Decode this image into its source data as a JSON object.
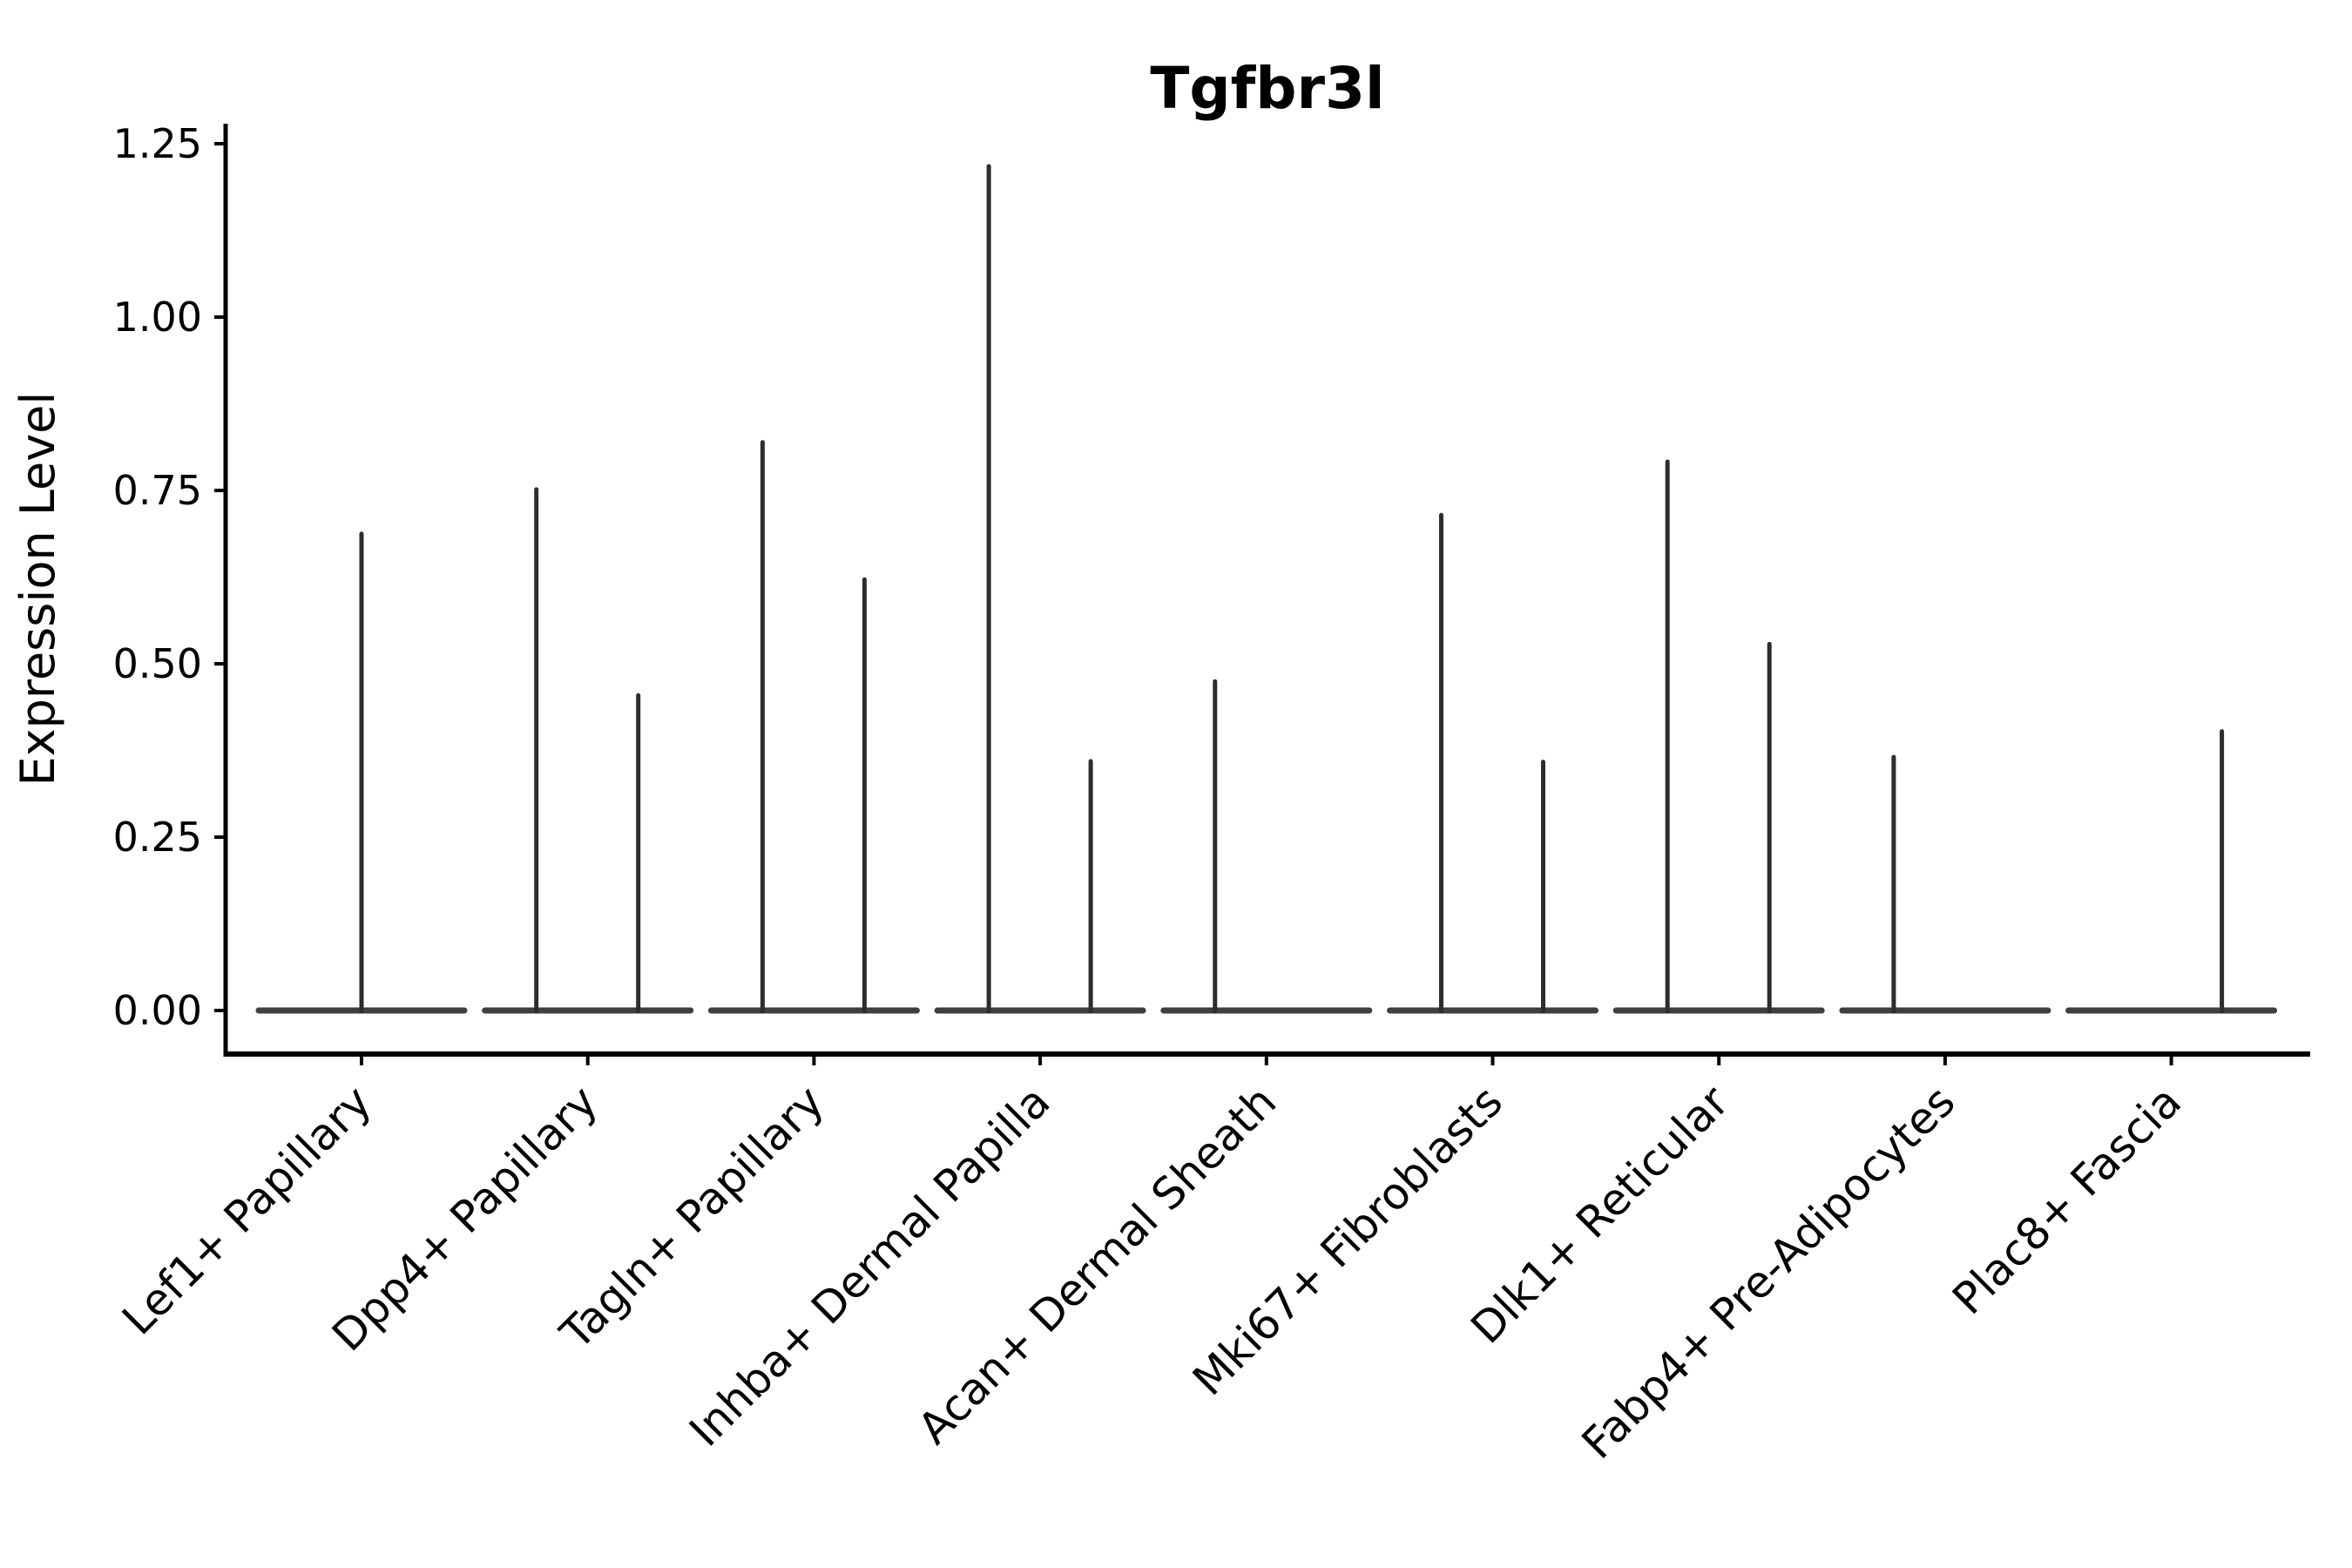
{
  "title": "Tgfbr3l",
  "ylabel": "Expression Level",
  "colors": {
    "background": "#ffffff",
    "axis": "#000000",
    "text": "#000000",
    "violin_spike": "#2d2d2d",
    "violin_baseline": "#3f3f3f"
  },
  "chart_data": {
    "type": "violin",
    "title": "Tgfbr3l",
    "xlabel": "",
    "ylabel": "Expression Level",
    "ylim": [
      0,
      1.25
    ],
    "y_ticks": [
      "0.00",
      "0.25",
      "0.50",
      "0.75",
      "1.00",
      "1.25"
    ],
    "y_tick_values": [
      0,
      0.25,
      0.5,
      0.75,
      1.0,
      1.25
    ],
    "grid": false,
    "legend_position": "none",
    "x_tick_rotation_deg": 45,
    "categories": [
      "Lef1+ Papillary",
      "Dpp4+ Papillary",
      "Tagln+ Papillary",
      "Inhba+ Dermal Papilla",
      "Acan+ Dermal Sheath",
      "Mki67+ Fibroblasts",
      "Dlk1+ Reticular",
      "Fabp4+ Pre-Adipocytes",
      "Plac8+ Fascia"
    ],
    "description": "Violin plot of Tgfbr3l expression; violins are collapsed to a flat baseline at 0 with narrow spikes marking the maximum expression tail. Groups may contain a left and/or right (dodged) violin spike.",
    "baseline_value": 0,
    "groups": [
      {
        "label": "Lef1+ Papillary",
        "spikes": [
          {
            "position": "center",
            "peak": 0.69
          }
        ]
      },
      {
        "label": "Dpp4+ Papillary",
        "spikes": [
          {
            "position": "left",
            "peak": 0.754
          },
          {
            "position": "right",
            "peak": 0.457
          }
        ]
      },
      {
        "label": "Tagln+ Papillary",
        "spikes": [
          {
            "position": "left",
            "peak": 0.822
          },
          {
            "position": "right",
            "peak": 0.624
          }
        ]
      },
      {
        "label": "Inhba+ Dermal Papilla",
        "spikes": [
          {
            "position": "left",
            "peak": 1.22
          },
          {
            "position": "right",
            "peak": 0.362
          }
        ]
      },
      {
        "label": "Acan+ Dermal Sheath",
        "spikes": [
          {
            "position": "left",
            "peak": 0.477
          }
        ]
      },
      {
        "label": "Mki67+ Fibroblasts",
        "spikes": [
          {
            "position": "left",
            "peak": 0.717
          },
          {
            "position": "right",
            "peak": 0.361
          }
        ]
      },
      {
        "label": "Dlk1+ Reticular",
        "spikes": [
          {
            "position": "left",
            "peak": 0.794
          },
          {
            "position": "right",
            "peak": 0.531
          }
        ]
      },
      {
        "label": "Fabp4+ Pre-Adipocytes",
        "spikes": [
          {
            "position": "left",
            "peak": 0.368
          }
        ]
      },
      {
        "label": "Plac8+ Fascia",
        "spikes": [
          {
            "position": "right",
            "peak": 0.405
          }
        ]
      }
    ]
  }
}
